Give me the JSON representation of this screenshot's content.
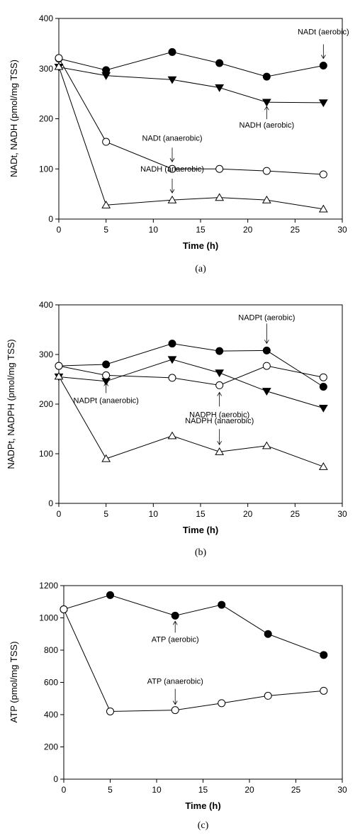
{
  "chart_data": [
    {
      "type": "line",
      "ylabel": "NADt, NADH (pmol/mg TSS)",
      "xlabel": "Time (h)",
      "panel_label": "(a)",
      "xlim": [
        0,
        30
      ],
      "ylim": [
        0,
        400
      ],
      "xticks": [
        0,
        5,
        10,
        15,
        20,
        25,
        30
      ],
      "yticks": [
        0,
        100,
        200,
        300,
        400
      ],
      "series": [
        {
          "id": "nadt_aerobic",
          "marker": "circle-filled",
          "x": [
            0,
            5,
            12,
            17,
            22,
            28
          ],
          "values": [
            320,
            297,
            333,
            311,
            284,
            306
          ]
        },
        {
          "id": "nadh_aerobic",
          "marker": "triangle-down-filled",
          "x": [
            0,
            5,
            12,
            17,
            22,
            28
          ],
          "values": [
            303,
            286,
            278,
            262,
            233,
            232
          ]
        },
        {
          "id": "nadt_anaerobic",
          "marker": "circle-open",
          "x": [
            0,
            5,
            12,
            17,
            22,
            28
          ],
          "values": [
            321,
            154,
            100,
            100,
            96,
            89
          ]
        },
        {
          "id": "nadh_anaerobic",
          "marker": "triangle-up-open",
          "x": [
            0,
            5,
            12,
            17,
            22,
            28
          ],
          "values": [
            304,
            28,
            38,
            43,
            38,
            20
          ]
        }
      ],
      "annotations": [
        {
          "text": "NADt (aerobic)",
          "x": 28,
          "y": 306,
          "arrow": "up"
        },
        {
          "text": "NADH (aerobic)",
          "x": 22,
          "y": 233,
          "arrow": "up"
        },
        {
          "text": "NADt (anaerobic)",
          "x": 12,
          "y": 100,
          "arrow": "down"
        },
        {
          "text": "NADH (anaerobic)",
          "x": 12,
          "y": 38,
          "arrow": "down"
        }
      ]
    },
    {
      "type": "line",
      "ylabel": "NADPt, NADPH (pmol/mg TSS)",
      "xlabel": "Time (h)",
      "panel_label": "(b)",
      "xlim": [
        0,
        30
      ],
      "ylim": [
        0,
        400
      ],
      "xticks": [
        0,
        5,
        10,
        15,
        20,
        25,
        30
      ],
      "yticks": [
        0,
        100,
        200,
        300,
        400
      ],
      "series": [
        {
          "id": "nadpt_aerobic",
          "marker": "circle-filled",
          "x": [
            0,
            5,
            12,
            17,
            22,
            28
          ],
          "values": [
            277,
            280,
            322,
            307,
            308,
            235
          ]
        },
        {
          "id": "nadph_aerobic",
          "marker": "triangle-down-filled",
          "x": [
            0,
            5,
            12,
            17,
            22,
            28
          ],
          "values": [
            255,
            246,
            290,
            263,
            226,
            192
          ]
        },
        {
          "id": "nadpt_anaerobic",
          "marker": "circle-open",
          "x": [
            0,
            5,
            12,
            17,
            22,
            28
          ],
          "values": [
            277,
            258,
            253,
            238,
            277,
            254
          ]
        },
        {
          "id": "nadph_anaerobic",
          "marker": "triangle-up-open",
          "x": [
            0,
            5,
            12,
            17,
            22,
            28
          ],
          "values": [
            256,
            90,
            136,
            104,
            116,
            74
          ]
        }
      ],
      "annotations": [
        {
          "text": "NADPt (aerobic)",
          "x": 22,
          "y": 308,
          "arrow": "down"
        },
        {
          "text": "NADPt (anaerobic)",
          "x": 5,
          "y": 258,
          "arrow": "up"
        },
        {
          "text": "NADPH (aerobic)",
          "x": 17,
          "y": 238,
          "arrow": "up"
        },
        {
          "text": "NADPH (anaerobic)",
          "x": 17,
          "y": 104,
          "arrow": "down"
        }
      ]
    },
    {
      "type": "line",
      "ylabel": "ATP (pmol/mg TSS)",
      "xlabel": "Time (h)",
      "panel_label": "(c)",
      "xlim": [
        0,
        30
      ],
      "ylim": [
        0,
        1200
      ],
      "xticks": [
        0,
        5,
        10,
        15,
        20,
        25,
        30
      ],
      "yticks": [
        0,
        200,
        400,
        600,
        800,
        1000,
        1200
      ],
      "series": [
        {
          "id": "atp_aerobic",
          "marker": "circle-filled",
          "x": [
            0,
            5,
            12,
            17,
            22,
            28
          ],
          "values": [
            1053,
            1141,
            1014,
            1081,
            900,
            770
          ]
        },
        {
          "id": "atp_anaerobic",
          "marker": "circle-open",
          "x": [
            0,
            5,
            12,
            17,
            22,
            28
          ],
          "values": [
            1053,
            420,
            428,
            471,
            517,
            548
          ]
        }
      ],
      "annotations": [
        {
          "text": "ATP (aerobic)",
          "x": 12,
          "y": 1014,
          "arrow": "up"
        },
        {
          "text": "ATP (anaerobic)",
          "x": 12,
          "y": 428,
          "arrow": "down"
        }
      ]
    }
  ]
}
